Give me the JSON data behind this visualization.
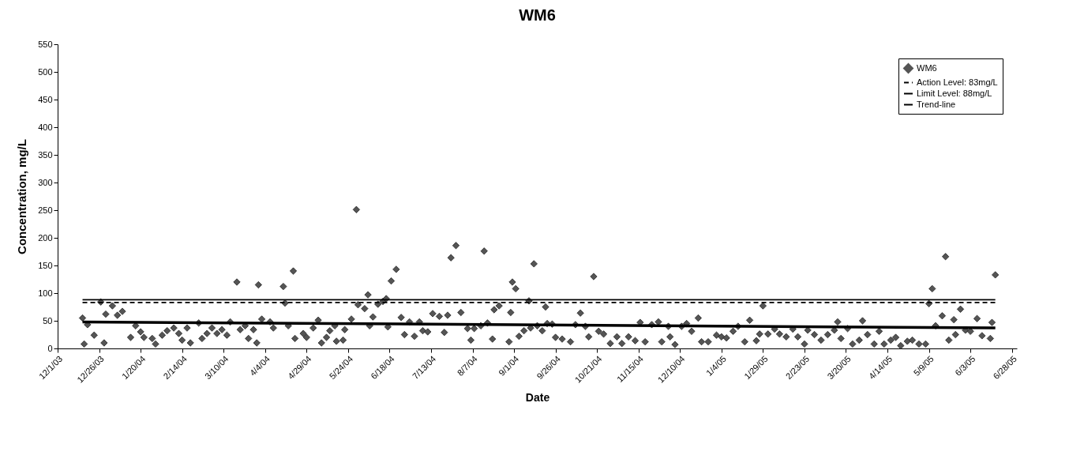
{
  "chart_data": {
    "type": "scatter",
    "title": "WM6",
    "xlabel": "Date",
    "ylabel": "Concentration, mg/L",
    "legend": "top right",
    "grid": false,
    "xlim": [
      "2003-12-01",
      "2005-07-01"
    ],
    "xticks": [
      {
        "value": "2003-12-01",
        "label": "12/1/03"
      },
      {
        "value": "2003-12-26",
        "label": "12/26/03"
      },
      {
        "value": "2004-01-20",
        "label": "1/20/04"
      },
      {
        "value": "2004-02-14",
        "label": "2/14/04"
      },
      {
        "value": "2004-03-10",
        "label": "3/10/04"
      },
      {
        "value": "2004-04-04",
        "label": "4/4/04"
      },
      {
        "value": "2004-04-29",
        "label": "4/29/04"
      },
      {
        "value": "2004-05-24",
        "label": "5/24/04"
      },
      {
        "value": "2004-06-18",
        "label": "6/18/04"
      },
      {
        "value": "2004-07-13",
        "label": "7/13/04"
      },
      {
        "value": "2004-08-07",
        "label": "8/7/04"
      },
      {
        "value": "2004-09-01",
        "label": "9/1/04"
      },
      {
        "value": "2004-09-26",
        "label": "9/26/04"
      },
      {
        "value": "2004-10-21",
        "label": "10/21/04"
      },
      {
        "value": "2004-11-15",
        "label": "11/15/04"
      },
      {
        "value": "2004-12-10",
        "label": "12/10/04"
      },
      {
        "value": "2005-01-04",
        "label": "1/4/05"
      },
      {
        "value": "2005-01-29",
        "label": "1/29/05"
      },
      {
        "value": "2005-02-23",
        "label": "2/23/05"
      },
      {
        "value": "2005-03-20",
        "label": "3/20/05"
      },
      {
        "value": "2005-04-14",
        "label": "4/14/05"
      },
      {
        "value": "2005-05-09",
        "label": "5/9/05"
      },
      {
        "value": "2005-06-03",
        "label": "6/3/05"
      },
      {
        "value": "2005-06-28",
        "label": "6/28/05"
      }
    ],
    "ylim": [
      0,
      550
    ],
    "yticks": [
      0,
      50,
      100,
      150,
      200,
      250,
      300,
      350,
      400,
      450,
      500,
      550
    ],
    "ref_lines": [
      {
        "axis": "y",
        "value": 83,
        "label": "Action Level: 83mg/L",
        "color": "#000000",
        "line_style": "dashed"
      },
      {
        "axis": "y",
        "value": 88,
        "label": "Limit Level: 88mg/L",
        "color": "#000000",
        "line_style": "solid"
      }
    ],
    "series": [
      {
        "name": "WM6",
        "type": "scatter",
        "color": "#555555",
        "marker": "diamond",
        "x": [
          "2003-12-16",
          "2003-12-17",
          "2003-12-19",
          "2003-12-23",
          "2003-12-27",
          "2003-12-29",
          "2003-12-30",
          "2004-01-03",
          "2004-01-06",
          "2004-01-09",
          "2004-01-14",
          "2004-01-17",
          "2004-01-20",
          "2004-01-22",
          "2004-01-27",
          "2004-01-29",
          "2004-02-02",
          "2004-02-05",
          "2004-02-09",
          "2004-02-12",
          "2004-02-14",
          "2004-02-17",
          "2004-02-19",
          "2004-02-24",
          "2004-02-26",
          "2004-02-29",
          "2004-03-03",
          "2004-03-06",
          "2004-03-09",
          "2004-03-12",
          "2004-03-14",
          "2004-03-18",
          "2004-03-20",
          "2004-03-23",
          "2004-03-25",
          "2004-03-28",
          "2004-03-30",
          "2004-03-31",
          "2004-04-02",
          "2004-04-07",
          "2004-04-09",
          "2004-04-15",
          "2004-04-16",
          "2004-04-18",
          "2004-04-21",
          "2004-04-22",
          "2004-04-27",
          "2004-04-29",
          "2004-05-03",
          "2004-05-06",
          "2004-05-08",
          "2004-05-11",
          "2004-05-13",
          "2004-05-16",
          "2004-05-17",
          "2004-05-21",
          "2004-05-22",
          "2004-05-26",
          "2004-05-29",
          "2004-05-30",
          "2004-06-03",
          "2004-06-05",
          "2004-06-06",
          "2004-06-08",
          "2004-06-11",
          "2004-06-14",
          "2004-06-16",
          "2004-06-17",
          "2004-06-19",
          "2004-06-22",
          "2004-06-25",
          "2004-06-27",
          "2004-06-30",
          "2004-07-03",
          "2004-07-06",
          "2004-07-08",
          "2004-07-11",
          "2004-07-14",
          "2004-07-18",
          "2004-07-21",
          "2004-07-23",
          "2004-07-25",
          "2004-07-28",
          "2004-07-31",
          "2004-08-04",
          "2004-08-06",
          "2004-08-08",
          "2004-08-12",
          "2004-08-14",
          "2004-08-16",
          "2004-08-19",
          "2004-08-20",
          "2004-08-23",
          "2004-08-29",
          "2004-08-30",
          "2004-08-31",
          "2004-09-02",
          "2004-09-04",
          "2004-09-07",
          "2004-09-10",
          "2004-09-11",
          "2004-09-13",
          "2004-09-15",
          "2004-09-18",
          "2004-09-20",
          "2004-09-21",
          "2004-09-24",
          "2004-09-26",
          "2004-09-30",
          "2004-10-05",
          "2004-10-08",
          "2004-10-11",
          "2004-10-14",
          "2004-10-16",
          "2004-10-19",
          "2004-10-22",
          "2004-10-25",
          "2004-10-29",
          "2004-11-02",
          "2004-11-05",
          "2004-11-09",
          "2004-11-13",
          "2004-11-16",
          "2004-11-19",
          "2004-11-23",
          "2004-11-27",
          "2004-11-29",
          "2004-12-03",
          "2004-12-04",
          "2004-12-07",
          "2004-12-11",
          "2004-12-14",
          "2004-12-17",
          "2004-12-21",
          "2004-12-23",
          "2004-12-27",
          "2005-01-01",
          "2005-01-04",
          "2005-01-07",
          "2005-01-11",
          "2005-01-14",
          "2005-01-18",
          "2005-01-21",
          "2005-01-25",
          "2005-01-27",
          "2005-01-29",
          "2005-02-01",
          "2005-02-05",
          "2005-02-08",
          "2005-02-12",
          "2005-02-16",
          "2005-02-19",
          "2005-02-23",
          "2005-02-25",
          "2005-03-01",
          "2005-03-05",
          "2005-03-09",
          "2005-03-13",
          "2005-03-15",
          "2005-03-17",
          "2005-03-21",
          "2005-03-24",
          "2005-03-28",
          "2005-03-30",
          "2005-04-02",
          "2005-04-06",
          "2005-04-09",
          "2005-04-12",
          "2005-04-16",
          "2005-04-19",
          "2005-04-22",
          "2005-04-26",
          "2005-04-29",
          "2005-05-03",
          "2005-05-07",
          "2005-05-09",
          "2005-05-11",
          "2005-05-13",
          "2005-05-17",
          "2005-05-19",
          "2005-05-21",
          "2005-05-24",
          "2005-05-25",
          "2005-05-28",
          "2005-05-31",
          "2005-06-03",
          "2005-06-07",
          "2005-06-10",
          "2005-06-15",
          "2005-06-16",
          "2005-06-18"
        ],
        "values": [
          55,
          8,
          43,
          24,
          84,
          10,
          62,
          77,
          60,
          67,
          20,
          41,
          30,
          20,
          18,
          8,
          24,
          32,
          37,
          27,
          15,
          37,
          10,
          46,
          18,
          27,
          37,
          27,
          34,
          24,
          48,
          120,
          34,
          41,
          18,
          34,
          10,
          115,
          53,
          48,
          37,
          112,
          82,
          41,
          140,
          18,
          27,
          20,
          37,
          51,
          10,
          20,
          32,
          41,
          13,
          15,
          34,
          53,
          251,
          79,
          72,
          97,
          41,
          57,
          80,
          85,
          90,
          39,
          122,
          143,
          56,
          25,
          48,
          22,
          48,
          32,
          30,
          63,
          58,
          29,
          60,
          164,
          186,
          65,
          36,
          15,
          36,
          41,
          176,
          46,
          17,
          70,
          77,
          12,
          65,
          120,
          108,
          22,
          32,
          86,
          37,
          153,
          41,
          32,
          75,
          45,
          44,
          20,
          17,
          12,
          43,
          64,
          40,
          21,
          130,
          31,
          26,
          9,
          21,
          9,
          21,
          14,
          47,
          12,
          43,
          48,
          12,
          40,
          21,
          7,
          40,
          45,
          31,
          55,
          12,
          12,
          24,
          21,
          19,
          31,
          40,
          12,
          51,
          14,
          26,
          77,
          26,
          35,
          26,
          21,
          35,
          21,
          8,
          33,
          25,
          15,
          25,
          33,
          48,
          18,
          36,
          8,
          15,
          50,
          25,
          8,
          31,
          8,
          15,
          20,
          5,
          13,
          15,
          8,
          8,
          81,
          108,
          41,
          59,
          166,
          15,
          52,
          25,
          71,
          33,
          31,
          54,
          23,
          18,
          47,
          133
        ]
      },
      {
        "name": "Trend-line",
        "type": "line",
        "color": "#000000",
        "x": [
          "2003-12-16",
          "2005-06-18"
        ],
        "values": [
          48,
          37
        ]
      }
    ]
  }
}
